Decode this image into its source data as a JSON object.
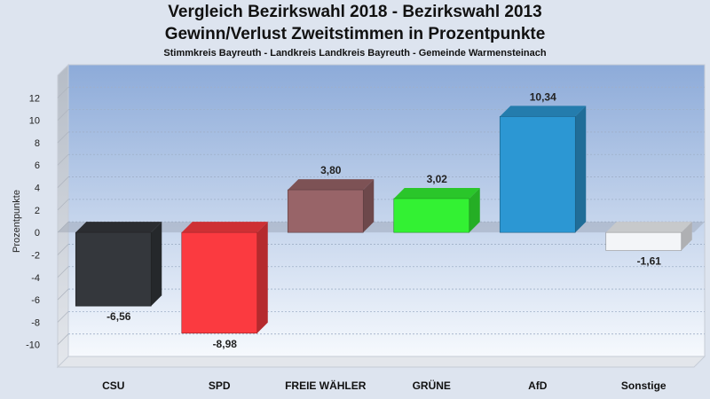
{
  "header": {
    "title_line1": "Vergleich Bezirkswahl 2018 - Bezirkswahl 2013",
    "title_line2": "Gewinn/Verlust Zweitstimmen in Prozentpunkte",
    "subtitle": "Stimmkreis Bayreuth - Landkreis Landkreis Bayreuth - Gemeinde Warmensteinach"
  },
  "chart_data": {
    "type": "bar",
    "title": "Vergleich Bezirkswahl 2018 - Bezirkswahl 2013 / Gewinn/Verlust Zweitstimmen in Prozentpunkte",
    "ylabel": "Prozentpunkte",
    "xlabel": "",
    "ylim": [
      -12,
      14
    ],
    "yticks": [
      12,
      10,
      8,
      6,
      4,
      2,
      0,
      -2,
      -4,
      -6,
      -8,
      -10
    ],
    "grid": true,
    "style": "3d",
    "categories": [
      "CSU",
      "SPD",
      "FREIE WÄHLER",
      "GRÜNE",
      "AfD",
      "Sonstige"
    ],
    "values": [
      -6.56,
      -8.98,
      3.8,
      3.02,
      10.34,
      -1.61
    ],
    "value_labels": [
      "-6,56",
      "-8,98",
      "3,80",
      "3,02",
      "10,34",
      "-1,61"
    ],
    "colors": [
      "#34373c",
      "#fb3a40",
      "#986468",
      "#33f133",
      "#2c97d3",
      "#f3f5f8"
    ]
  }
}
